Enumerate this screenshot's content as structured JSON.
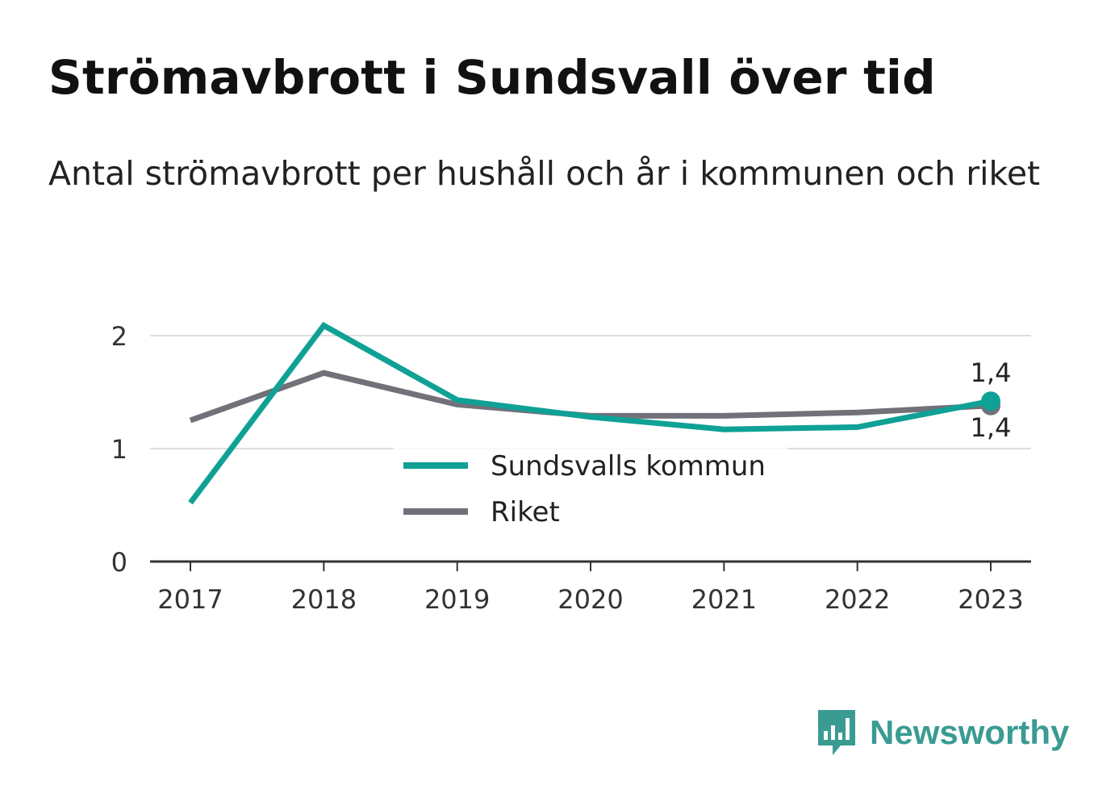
{
  "title": "Strömavbrott i Sundsvall över tid",
  "subtitle": "Antal strömavbrott per hushåll och år i kommunen och riket",
  "brand": "Newsworthy",
  "colors": {
    "sundsvall": "#0fa195",
    "riket": "#727079",
    "grid": "#dddddd",
    "axis": "#333333",
    "brand": "#3a9b92"
  },
  "chart_data": {
    "type": "line",
    "categories": [
      "2017",
      "2018",
      "2019",
      "2020",
      "2021",
      "2022",
      "2023"
    ],
    "ylim": [
      0,
      2.2
    ],
    "yticks": [
      "0",
      "1",
      "2"
    ],
    "grid": true,
    "legend_position": "center",
    "series": [
      {
        "name": "Sundsvalls kommun",
        "values": [
          0.52,
          2.09,
          1.43,
          1.28,
          1.17,
          1.19,
          1.42
        ],
        "end_label": "1,4"
      },
      {
        "name": "Riket",
        "values": [
          1.25,
          1.67,
          1.39,
          1.29,
          1.29,
          1.32,
          1.38
        ],
        "end_label": "1,4"
      }
    ]
  }
}
